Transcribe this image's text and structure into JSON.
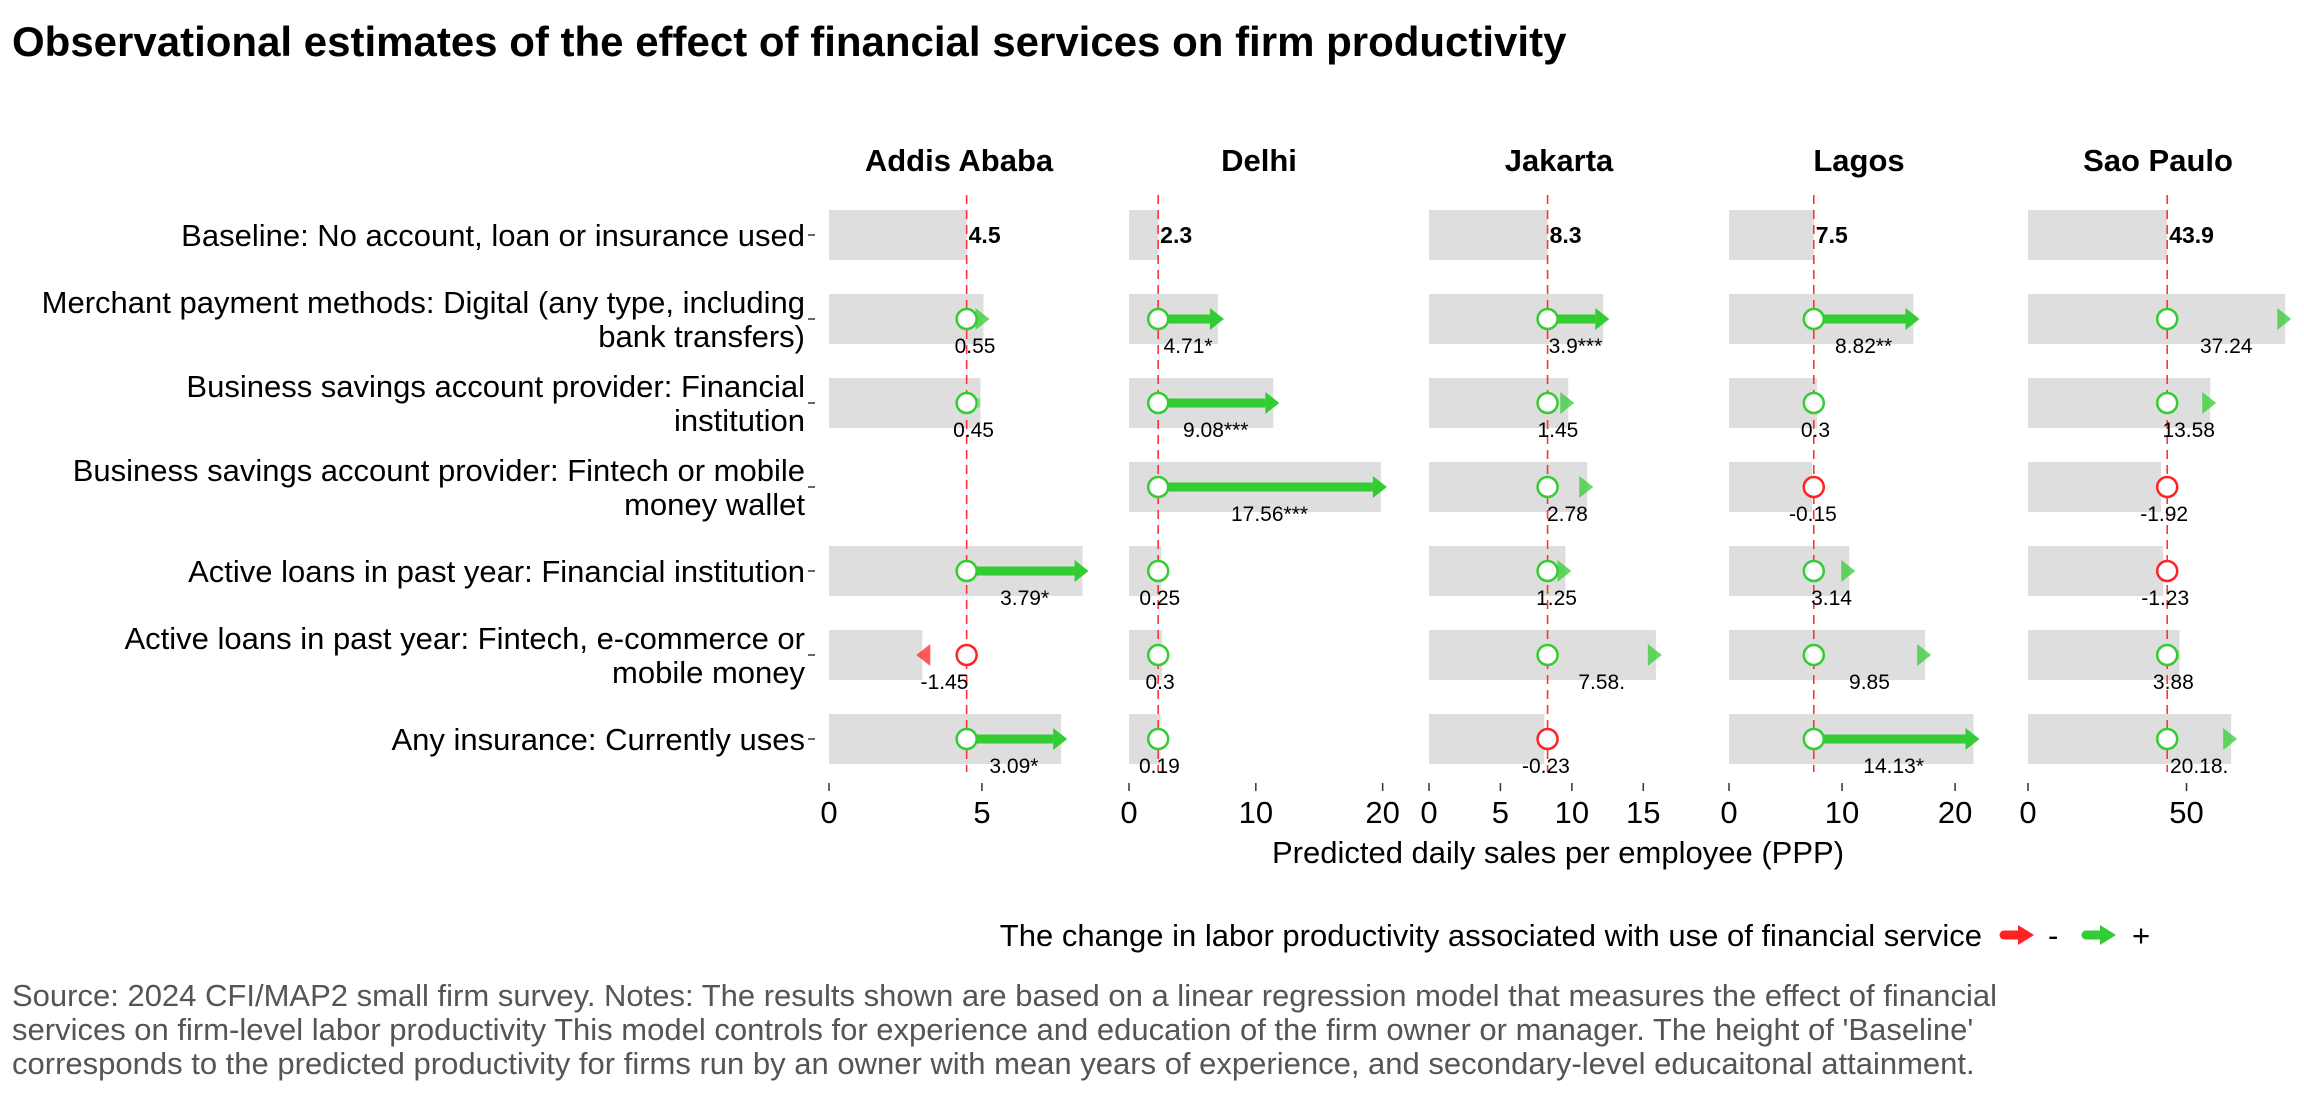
{
  "chart_data": {
    "type": "bar",
    "title": "Observational estimates of the effect of financial services on firm productivity",
    "xlabel": "Predicted daily sales per employee (PPP)",
    "categories": [
      [
        "Baseline: No account, loan or insurance used"
      ],
      [
        "Merchant payment methods: Digital (any type, including",
        "bank transfers)"
      ],
      [
        "Business savings account provider: Financial",
        "institution"
      ],
      [
        "Business savings account provider: Fintech or mobile",
        "money wallet"
      ],
      [
        "Active loans in past year: Financial institution"
      ],
      [
        "Active loans in past year: Fintech, e-commerce or",
        "mobile money"
      ],
      [
        "Any insurance: Currently uses"
      ]
    ],
    "facets": [
      {
        "name": "Addis Ababa",
        "xlim": [
          0,
          8.5
        ],
        "ticks": [
          0,
          5
        ],
        "baseline": 4.5,
        "baseline_label": "4.5",
        "effects": [
          0.55,
          0.45,
          null,
          3.79,
          -1.45,
          3.09
        ],
        "labels": [
          "0.55",
          "0.45",
          "",
          "3.79*",
          "-1.45",
          "3.09*"
        ],
        "significant": [
          false,
          false,
          false,
          true,
          false,
          true
        ]
      },
      {
        "name": "Delhi",
        "xlim": [
          0,
          20.5
        ],
        "ticks": [
          0,
          10,
          20
        ],
        "baseline": 2.3,
        "baseline_label": "2.3",
        "effects": [
          4.71,
          9.08,
          17.56,
          0.25,
          0.3,
          0.19
        ],
        "labels": [
          "4.71*",
          "9.08***",
          "17.56***",
          "0.25",
          "0.3",
          "0.19"
        ],
        "significant": [
          true,
          true,
          true,
          false,
          false,
          false
        ]
      },
      {
        "name": "Jakarta",
        "xlim": [
          0,
          18.2
        ],
        "ticks": [
          0,
          5,
          10,
          15
        ],
        "baseline": 8.3,
        "baseline_label": "8.3",
        "effects": [
          3.9,
          1.45,
          2.78,
          1.25,
          7.58,
          -0.23
        ],
        "labels": [
          "3.9***",
          "1.45",
          "2.78",
          "1.25",
          "7.58.",
          "-0.23"
        ],
        "significant": [
          true,
          false,
          false,
          false,
          false,
          false
        ]
      },
      {
        "name": "Lagos",
        "xlim": [
          0,
          23.0
        ],
        "ticks": [
          0,
          10,
          20
        ],
        "baseline": 7.5,
        "baseline_label": "7.5",
        "effects": [
          8.82,
          0.3,
          -0.15,
          3.14,
          9.85,
          14.13
        ],
        "labels": [
          "8.82**",
          "0.3",
          "-0.15",
          "3.14",
          "9.85",
          "14.13*"
        ],
        "significant": [
          true,
          false,
          false,
          false,
          false,
          true
        ]
      },
      {
        "name": "Sao Paulo",
        "xlim": [
          0,
          82.0
        ],
        "ticks": [
          0,
          50
        ],
        "baseline": 43.9,
        "baseline_label": "43.9",
        "effects": [
          37.24,
          13.58,
          -1.92,
          -1.23,
          3.88,
          20.18
        ],
        "labels": [
          "37.24",
          "13.58",
          "-1.92",
          "-1.23",
          "3.88",
          "20.18."
        ],
        "significant": [
          false,
          false,
          false,
          false,
          false,
          false
        ]
      }
    ],
    "colors": {
      "positive": "#33cc33",
      "negative": "#ff2222",
      "bar": "#dedede",
      "baseline_line": "#ff3333"
    },
    "legend": {
      "title": "The change in labor productivity associated with use of financial service",
      "negative_label": "-",
      "positive_label": "+",
      "position": "bottom-right"
    },
    "grid": false
  },
  "source_lines": [
    "Source: 2024 CFI/MAP2 small firm survey. Notes: The results shown are based on a linear regression model that measures the effect of financial",
    "services on firm-level labor productivity This model controls for experience and education of the firm owner or manager. The height of 'Baseline'",
    "corresponds to the predicted productivity for firms run by an owner with mean years of experience, and secondary-level educaitonal attainment."
  ]
}
